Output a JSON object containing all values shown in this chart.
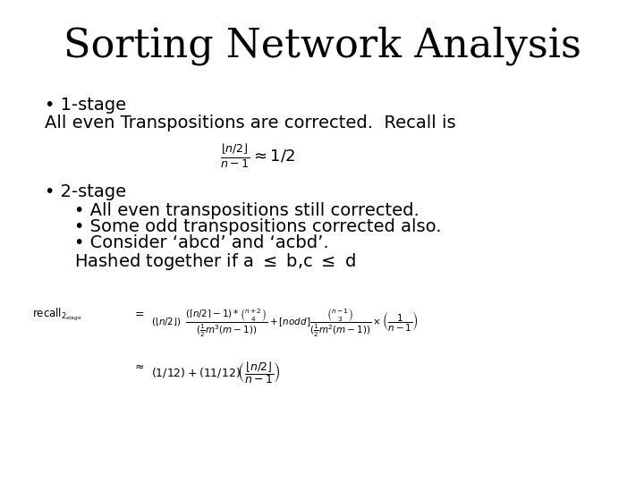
{
  "title": "Sorting Network Analysis",
  "background_color": "#ffffff",
  "text_color": "#000000",
  "title_fontsize": 32,
  "body_fontsize": 14,
  "bullet1": "1-stage",
  "line1": "All even Transpositions are corrected.  Recall is",
  "bullet2": "2-stage",
  "sub1": "All even transpositions still corrected.",
  "sub2": "Some odd transpositions corrected also.",
  "sub3": "Consider ‘abcd’ and ‘acbd’.",
  "line2": "Hashed together if a \\leq b,c \\leq d"
}
